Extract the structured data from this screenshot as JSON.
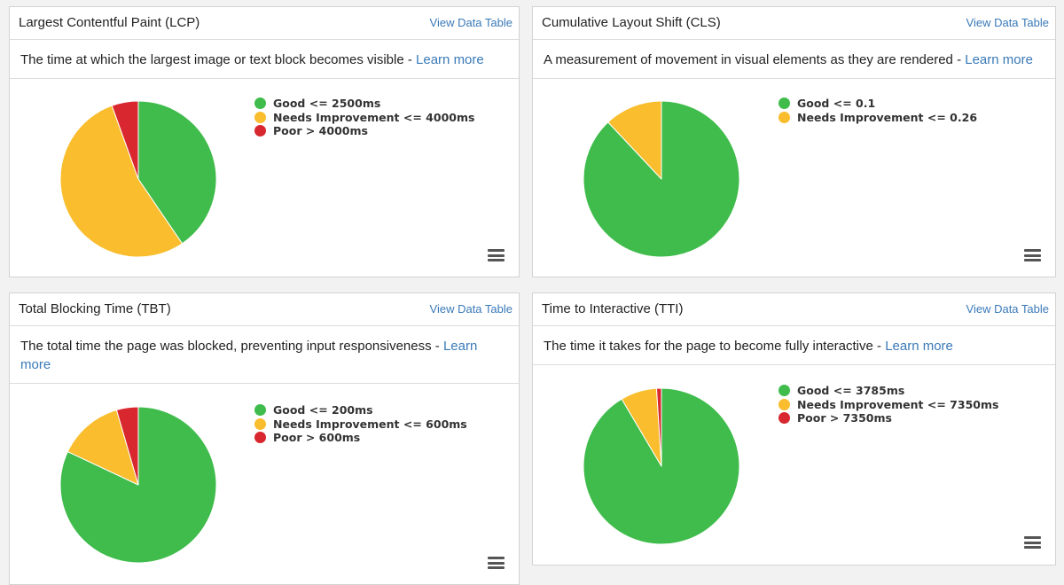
{
  "common": {
    "view_data_table": "View Data Table",
    "learn_more": "Learn more"
  },
  "colors": {
    "good": "#3fbc4b",
    "needs_improvement": "#f9bd2e",
    "poor": "#d8272e"
  },
  "cards": [
    {
      "id": "lcp",
      "title": "Largest Contentful Paint (LCP)",
      "description": "The time at which the largest image or text block becomes visible - ",
      "chart_data": {
        "type": "pie",
        "labels": [
          "Good <= 2500ms",
          "Needs Improvement <= 4000ms",
          "Poor > 4000ms"
        ],
        "values": [
          40.5,
          54,
          5.5
        ],
        "colors": [
          "#3fbc4b",
          "#f9bd2e",
          "#d8272e"
        ]
      }
    },
    {
      "id": "cls",
      "title": "Cumulative Layout Shift (CLS)",
      "description": "A measurement of movement in visual elements as they are rendered - ",
      "chart_data": {
        "type": "pie",
        "labels": [
          "Good <= 0.1",
          "Needs Improvement <= 0.26"
        ],
        "values": [
          88,
          12
        ],
        "colors": [
          "#3fbc4b",
          "#f9bd2e"
        ]
      }
    },
    {
      "id": "tbt",
      "title": "Total Blocking Time (TBT)",
      "description": "The total time the page was blocked, preventing input responsiveness - ",
      "chart_data": {
        "type": "pie",
        "labels": [
          "Good <= 200ms",
          "Needs Improvement <= 600ms",
          "Poor > 600ms"
        ],
        "values": [
          82,
          13.5,
          4.5
        ],
        "colors": [
          "#3fbc4b",
          "#f9bd2e",
          "#d8272e"
        ]
      }
    },
    {
      "id": "tti",
      "title": "Time to Interactive (TTI)",
      "description": "The time it takes for the page to become fully interactive - ",
      "chart_data": {
        "type": "pie",
        "labels": [
          "Good <= 3785ms",
          "Needs Improvement <= 7350ms",
          "Poor > 7350ms"
        ],
        "values": [
          91.5,
          7.5,
          1
        ],
        "colors": [
          "#3fbc4b",
          "#f9bd2e",
          "#d8272e"
        ]
      }
    }
  ]
}
